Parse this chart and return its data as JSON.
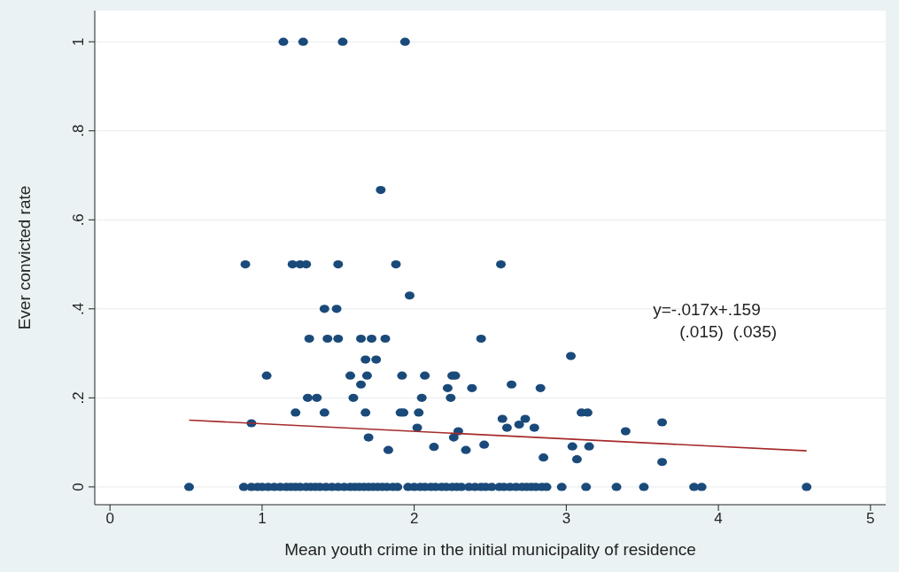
{
  "chart_data": {
    "type": "scatter",
    "xlabel": "Mean youth crime in the initial municipality of residence",
    "ylabel": "Ever convicted rate",
    "xlim": [
      -0.1,
      5.1
    ],
    "ylim": [
      -0.04,
      1.07
    ],
    "xticks": [
      0,
      1,
      2,
      3,
      4,
      5
    ],
    "yticks": [
      {
        "value": 0,
        "label": "0"
      },
      {
        "value": 0.2,
        "label": ".2"
      },
      {
        "value": 0.4,
        "label": ".4"
      },
      {
        "value": 0.6,
        "label": ".6"
      },
      {
        "value": 0.8,
        "label": ".8"
      },
      {
        "value": 1,
        "label": "1"
      }
    ],
    "grid": "y",
    "legend": false,
    "annotations": [
      "y=-.017x+.159",
      "(.015)  (.035)"
    ],
    "series": [
      {
        "color": "#1a4a7a",
        "marker": "circle",
        "x": [
          1.14,
          1.27,
          1.53,
          1.94,
          1.78,
          0.89,
          1.2,
          1.25,
          1.29,
          1.5,
          1.88,
          2.57,
          1.97,
          1.41,
          1.49,
          1.31,
          1.43,
          1.5,
          1.65,
          1.72,
          1.81,
          2.44,
          1.68,
          1.75,
          1.03,
          1.58,
          1.69,
          1.92,
          2.07,
          2.25,
          2.27,
          1.65,
          2.22,
          2.38,
          2.64,
          2.83,
          1.3,
          1.36,
          1.6,
          2.05,
          2.24,
          1.22,
          1.41,
          1.68,
          1.91,
          1.93,
          2.03,
          3.1,
          3.14,
          2.58,
          2.73,
          2.69,
          2.61,
          2.79,
          2.02,
          0.93,
          1.7,
          2.26,
          2.29,
          1.83,
          2.34,
          2.13,
          2.46,
          2.85,
          3.03,
          3.04,
          3.07,
          3.15,
          3.39,
          3.63,
          3.63,
          0.52,
          0.88,
          0.93,
          0.97,
          1.0,
          1.04,
          1.08,
          1.12,
          1.16,
          1.19,
          1.22,
          1.25,
          1.29,
          1.32,
          1.35,
          1.38,
          1.42,
          1.46,
          1.5,
          1.54,
          1.58,
          1.61,
          1.64,
          1.67,
          1.7,
          1.73,
          1.76,
          1.79,
          1.82,
          1.86,
          1.89,
          1.96,
          2.0,
          2.04,
          2.07,
          2.11,
          2.14,
          2.18,
          2.21,
          2.25,
          2.28,
          2.31,
          2.36,
          2.4,
          2.44,
          2.47,
          2.51,
          2.56,
          2.59,
          2.63,
          2.67,
          2.71,
          2.74,
          2.77,
          2.8,
          2.84,
          2.87,
          2.97,
          3.13,
          3.33,
          3.51,
          3.84,
          3.89,
          4.58
        ],
        "values": [
          1,
          1,
          1,
          1,
          0.667,
          0.5,
          0.5,
          0.5,
          0.5,
          0.5,
          0.5,
          0.5,
          0.43,
          0.4,
          0.4,
          0.333,
          0.333,
          0.333,
          0.333,
          0.333,
          0.333,
          0.333,
          0.286,
          0.286,
          0.25,
          0.25,
          0.25,
          0.25,
          0.25,
          0.25,
          0.25,
          0.23,
          0.222,
          0.222,
          0.23,
          0.222,
          0.2,
          0.2,
          0.2,
          0.2,
          0.2,
          0.167,
          0.167,
          0.167,
          0.167,
          0.167,
          0.167,
          0.167,
          0.167,
          0.153,
          0.153,
          0.14,
          0.133,
          0.133,
          0.133,
          0.143,
          0.111,
          0.111,
          0.125,
          0.083,
          0.083,
          0.09,
          0.095,
          0.066,
          0.294,
          0.091,
          0.062,
          0.091,
          0.125,
          0.145,
          0.056,
          0,
          0,
          0,
          0,
          0,
          0,
          0,
          0,
          0,
          0,
          0,
          0,
          0,
          0,
          0,
          0,
          0,
          0,
          0,
          0,
          0,
          0,
          0,
          0,
          0,
          0,
          0,
          0,
          0,
          0,
          0,
          0,
          0,
          0,
          0,
          0,
          0,
          0,
          0,
          0,
          0,
          0,
          0,
          0,
          0,
          0,
          0,
          0,
          0,
          0,
          0,
          0,
          0,
          0,
          0,
          0,
          0,
          0,
          0,
          0,
          0,
          0,
          0,
          0
        ]
      },
      {
        "type": "line",
        "color": "#a52a2a",
        "marker": "none",
        "x": [
          0.52,
          4.58
        ],
        "values": [
          0.15,
          0.081
        ]
      }
    ]
  }
}
